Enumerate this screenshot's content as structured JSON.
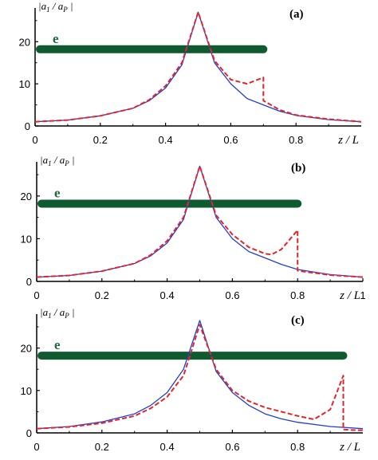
{
  "figure": {
    "colors": {
      "solid": "#1f3fd6",
      "dashed": "#e8222a",
      "beam": "#0f5a2e",
      "axis": "#000000"
    }
  },
  "chart_data": [
    {
      "type": "line",
      "panel_label": "(a)",
      "beam_label": "e",
      "beam_x_range": [
        0,
        0.7
      ],
      "beam_y": 18.2,
      "ylabel_parts": {
        "open": "|",
        "num": "a",
        "num_sub": "1",
        "sep": " / ",
        "den": "a",
        "den_sub": "P",
        "close": " |"
      },
      "xlabel": "z / L",
      "xlim": [
        0,
        1
      ],
      "ylim": [
        0,
        28
      ],
      "xticks": [
        "0",
        "0.2",
        "0.4",
        "0.6",
        "0.8"
      ],
      "xtick_values": [
        0,
        0.2,
        0.4,
        0.6,
        0.8
      ],
      "yticks": [
        "0",
        "10",
        "20"
      ],
      "ytick_values": [
        0,
        10,
        20
      ],
      "series": [
        {
          "style": "solid",
          "x": [
            0,
            0.1,
            0.2,
            0.3,
            0.35,
            0.4,
            0.45,
            0.5,
            0.55,
            0.6,
            0.65,
            0.7,
            0.75,
            0.8,
            0.9,
            1.0
          ],
          "y": [
            1.0,
            1.4,
            2.4,
            4.2,
            6.0,
            9.0,
            14.5,
            27.0,
            15.0,
            10.0,
            6.5,
            5.0,
            3.5,
            2.5,
            1.5,
            1.0
          ]
        },
        {
          "style": "dashed",
          "x": [
            0,
            0.1,
            0.2,
            0.3,
            0.35,
            0.4,
            0.45,
            0.5,
            0.55,
            0.6,
            0.65,
            0.7,
            0.7,
            0.75,
            0.8,
            0.9,
            1.0
          ],
          "y": [
            1.0,
            1.4,
            2.4,
            4.2,
            6.2,
            9.5,
            15.0,
            27.0,
            15.5,
            11.0,
            10.0,
            11.5,
            6.0,
            3.8,
            2.6,
            1.6,
            1.0
          ]
        }
      ]
    },
    {
      "type": "line",
      "panel_label": "(b)",
      "beam_label": "e",
      "beam_x_range": [
        0,
        0.8
      ],
      "beam_y": 18.2,
      "ylabel_parts": {
        "open": "|",
        "num": "a",
        "num_sub": "1",
        "sep": " / ",
        "den": "a",
        "den_sub": "P",
        "close": " |"
      },
      "xlabel": "z / L",
      "xlim": [
        0,
        1
      ],
      "ylim": [
        0,
        28
      ],
      "xticks": [
        "0",
        "0.2",
        "0.4",
        "0.6",
        "0.8",
        "1"
      ],
      "xtick_values": [
        0,
        0.2,
        0.4,
        0.6,
        0.8,
        1.0
      ],
      "yticks": [
        "0",
        "10",
        "20"
      ],
      "ytick_values": [
        0,
        10,
        20
      ],
      "series": [
        {
          "style": "solid",
          "x": [
            0,
            0.1,
            0.2,
            0.3,
            0.35,
            0.4,
            0.45,
            0.5,
            0.55,
            0.6,
            0.65,
            0.7,
            0.75,
            0.8,
            0.9,
            1.0
          ],
          "y": [
            1.0,
            1.4,
            2.4,
            4.2,
            6.0,
            9.0,
            14.5,
            27.0,
            15.0,
            10.0,
            7.0,
            5.5,
            4.0,
            2.8,
            1.6,
            1.0
          ]
        },
        {
          "style": "dashed",
          "x": [
            0,
            0.1,
            0.2,
            0.3,
            0.35,
            0.4,
            0.45,
            0.5,
            0.55,
            0.6,
            0.65,
            0.7,
            0.72,
            0.75,
            0.8,
            0.8,
            0.85,
            0.9,
            1.0
          ],
          "y": [
            1.0,
            1.4,
            2.4,
            4.2,
            6.2,
            9.5,
            15.0,
            27.0,
            15.5,
            11.0,
            8.0,
            6.5,
            6.3,
            7.5,
            12.0,
            2.5,
            2.0,
            1.5,
            1.0
          ]
        }
      ]
    },
    {
      "type": "line",
      "panel_label": "(c)",
      "beam_label": "e",
      "beam_x_range": [
        0,
        0.94
      ],
      "beam_y": 18.2,
      "ylabel_parts": {
        "open": "|",
        "num": "a",
        "num_sub": "1",
        "sep": " / ",
        "den": "a",
        "den_sub": "P",
        "close": " |"
      },
      "xlabel": "z / L",
      "xlim": [
        0,
        1
      ],
      "ylim": [
        0,
        28
      ],
      "xticks": [
        "0",
        "0.2",
        "0.4",
        "0.6",
        "0.8"
      ],
      "xtick_values": [
        0,
        0.2,
        0.4,
        0.6,
        0.8
      ],
      "yticks": [
        "0",
        "10",
        "20"
      ],
      "ytick_values": [
        0,
        10,
        20
      ],
      "series": [
        {
          "style": "solid",
          "x": [
            0,
            0.1,
            0.2,
            0.3,
            0.35,
            0.4,
            0.45,
            0.5,
            0.55,
            0.6,
            0.65,
            0.7,
            0.75,
            0.8,
            0.9,
            1.0
          ],
          "y": [
            1.0,
            1.5,
            2.6,
            4.5,
            6.5,
            9.5,
            15.0,
            26.5,
            14.5,
            9.5,
            6.5,
            4.5,
            3.3,
            2.5,
            1.5,
            1.0
          ]
        },
        {
          "style": "dashed",
          "x": [
            0,
            0.1,
            0.2,
            0.3,
            0.35,
            0.4,
            0.45,
            0.5,
            0.55,
            0.6,
            0.65,
            0.7,
            0.75,
            0.8,
            0.85,
            0.9,
            0.94,
            0.94,
            0.96,
            1.0
          ],
          "y": [
            1.0,
            1.4,
            2.3,
            4.0,
            5.8,
            8.5,
            13.5,
            25.5,
            15.0,
            10.0,
            7.5,
            6.0,
            5.0,
            4.0,
            3.2,
            5.5,
            13.5,
            0.8,
            0.7,
            0.6
          ]
        }
      ]
    }
  ]
}
